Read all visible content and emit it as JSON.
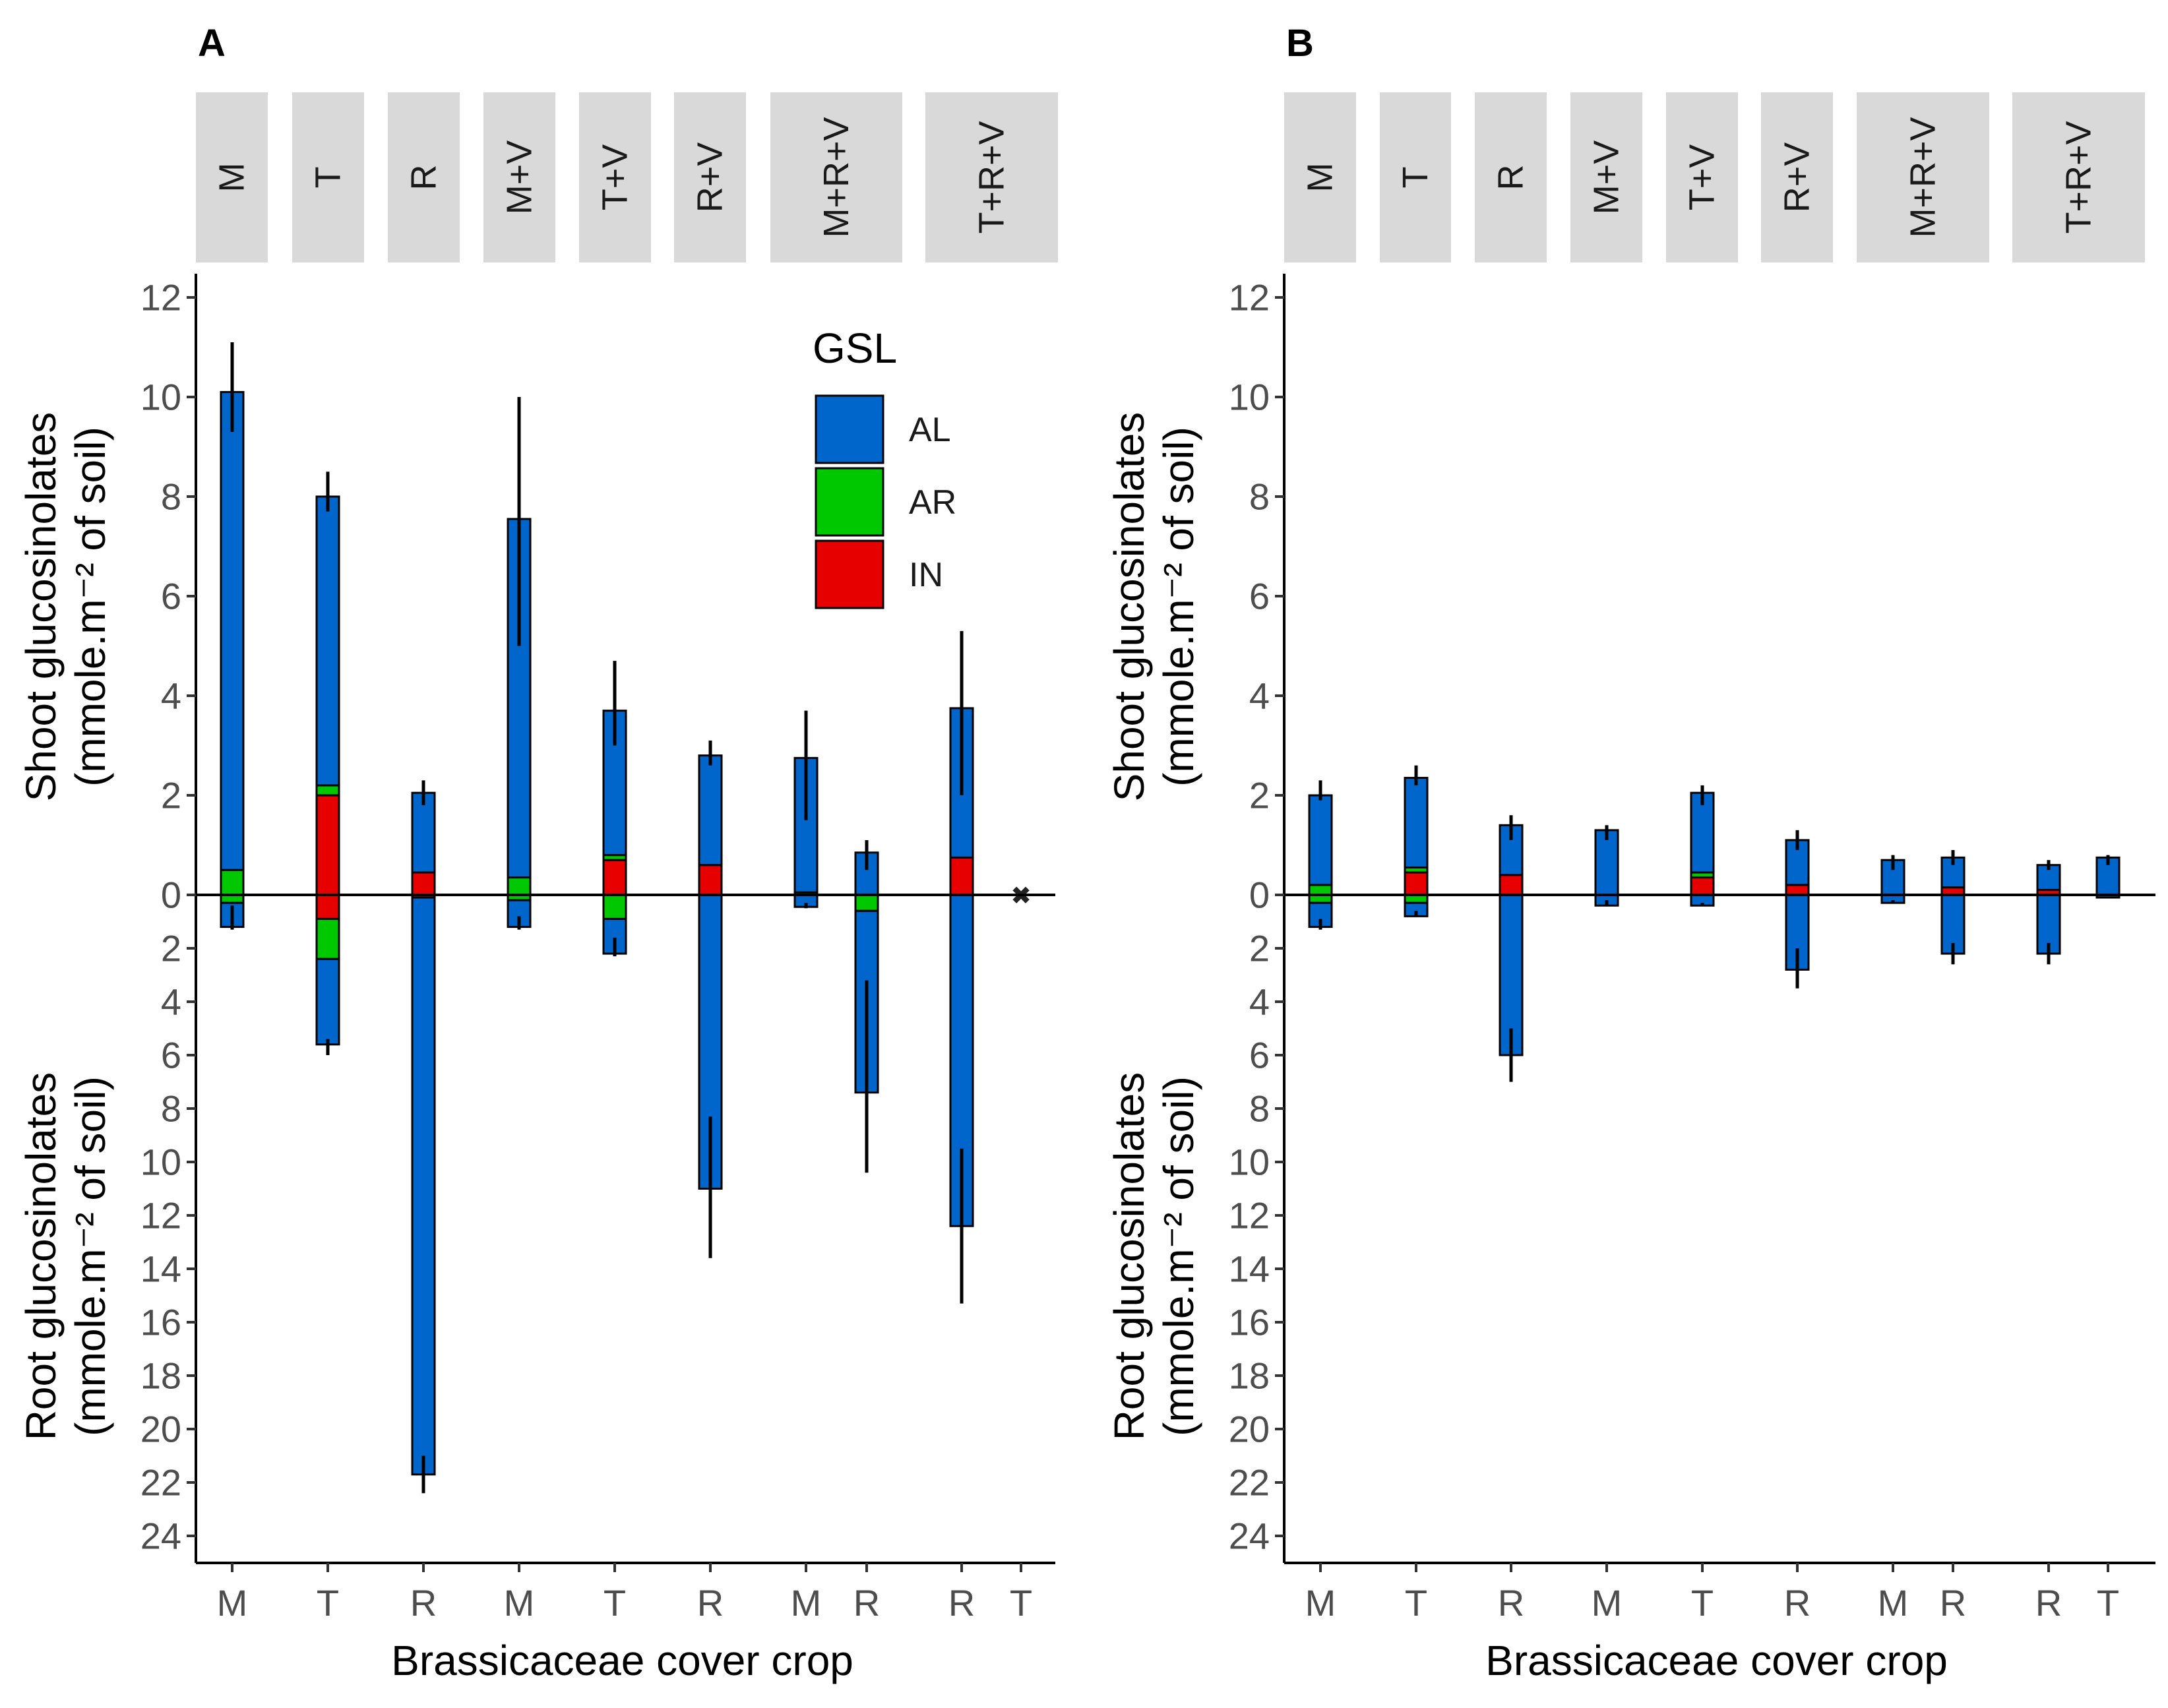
{
  "chart_data": [
    {
      "type": "bar",
      "panel": "A",
      "title": "",
      "xlabel": "Brassicaceae cover crop",
      "ylabel_top": [
        "Shoot glucosinolates",
        "(mmole.m⁻² of soil)"
      ],
      "ylabel_bottom": [
        "Root glucosinolates",
        "(mmole.m⁻² of soil)"
      ],
      "shoot_ticks": [
        "12",
        "10",
        "8",
        "6",
        "4",
        "2",
        "0"
      ],
      "root_ticks": [
        "2",
        "4",
        "6",
        "8",
        "10",
        "12",
        "14",
        "16",
        "18",
        "20",
        "22",
        "24"
      ],
      "ylim_shoot": [
        0,
        12
      ],
      "ylim_root": [
        0,
        24
      ],
      "groups": [
        "M",
        "T",
        "R",
        "M+V",
        "T+V",
        "R+V",
        "M+R+V",
        "T+R+V"
      ],
      "categories": [
        {
          "group": 0,
          "label": "M",
          "shoot": {
            "AL": 9.6,
            "AR": 0.5,
            "IN": 0.0
          },
          "root": {
            "AL": 0.9,
            "AR": 0.3,
            "IN": 0.0
          },
          "shoot_err": [
            9.3,
            11.1
          ],
          "root_err": [
            0.4,
            1.3
          ]
        },
        {
          "group": 1,
          "label": "T",
          "shoot": {
            "AL": 5.8,
            "AR": 0.2,
            "IN": 2.0
          },
          "root": {
            "AL": 3.2,
            "AR": 1.5,
            "IN": 0.9
          },
          "shoot_err": [
            7.7,
            8.5
          ],
          "root_err": [
            5.4,
            6.0
          ]
        },
        {
          "group": 2,
          "label": "R",
          "shoot": {
            "AL": 1.6,
            "AR": 0.0,
            "IN": 0.45
          },
          "root": {
            "AL": 21.6,
            "AR": 0.0,
            "IN": 0.1
          },
          "shoot_err": [
            1.8,
            2.3
          ],
          "root_err": [
            21.0,
            22.4
          ]
        },
        {
          "group": 3,
          "label": "M",
          "shoot": {
            "AL": 7.2,
            "AR": 0.35,
            "IN": 0.0
          },
          "root": {
            "AL": 1.0,
            "AR": 0.2,
            "IN": 0.0
          },
          "shoot_err": [
            5.0,
            10.0
          ],
          "root_err": [
            0.8,
            1.3
          ]
        },
        {
          "group": 4,
          "label": "T",
          "shoot": {
            "AL": 2.9,
            "AR": 0.1,
            "IN": 0.7
          },
          "root": {
            "AL": 1.3,
            "AR": 0.9,
            "IN": 0.0
          },
          "shoot_err": [
            3.0,
            4.7
          ],
          "root_err": [
            1.6,
            2.3
          ]
        },
        {
          "group": 5,
          "label": "R",
          "shoot": {
            "AL": 2.2,
            "AR": 0.0,
            "IN": 0.6
          },
          "root": {
            "AL": 11.0,
            "AR": 0.0,
            "IN": 0.0
          },
          "shoot_err": [
            2.6,
            3.1
          ],
          "root_err": [
            8.3,
            13.6
          ]
        },
        {
          "group": 6,
          "label": "M",
          "shoot": {
            "AL": 2.7,
            "AR": 0.05,
            "IN": 0.0
          },
          "root": {
            "AL": 0.45,
            "AR": 0.0,
            "IN": 0.0
          },
          "shoot_err": [
            1.5,
            3.7
          ],
          "root_err": [
            0.3,
            0.5
          ]
        },
        {
          "group": 6,
          "label": "R",
          "shoot": {
            "AL": 0.85,
            "AR": 0.0,
            "IN": 0.0
          },
          "root": {
            "AL": 6.8,
            "AR": 0.6,
            "IN": 0.0
          },
          "shoot_err": [
            0.5,
            1.1
          ],
          "root_err": [
            3.2,
            10.4
          ]
        },
        {
          "group": 7,
          "label": "R",
          "shoot": {
            "AL": 3.0,
            "AR": 0.0,
            "IN": 0.75
          },
          "root": {
            "AL": 12.4,
            "AR": 0.0,
            "IN": 0.0
          },
          "shoot_err": [
            2.0,
            5.3
          ],
          "root_err": [
            9.5,
            15.3
          ]
        },
        {
          "group": 7,
          "label": "T",
          "shoot": {
            "AL": 0.0,
            "AR": 0.0,
            "IN": 0.0
          },
          "root": {
            "AL": 0.0,
            "AR": 0.0,
            "IN": 0.0
          },
          "shoot_err": null,
          "root_err": null,
          "marker": "✖"
        }
      ]
    },
    {
      "type": "bar",
      "panel": "B",
      "title": "",
      "xlabel": "Brassicaceae cover crop",
      "ylabel_top": [
        "Shoot glucosinolates",
        "(mmole.m⁻² of soil)"
      ],
      "ylabel_bottom": [
        "Root glucosinolates",
        "(mmole.m⁻² of soil)"
      ],
      "shoot_ticks": [
        "12",
        "10",
        "8",
        "6",
        "4",
        "2",
        "0"
      ],
      "root_ticks": [
        "2",
        "4",
        "6",
        "8",
        "10",
        "12",
        "14",
        "16",
        "18",
        "20",
        "22",
        "24"
      ],
      "ylim_shoot": [
        0,
        12
      ],
      "ylim_root": [
        0,
        24
      ],
      "groups": [
        "M",
        "T",
        "R",
        "M+V",
        "T+V",
        "R+V",
        "M+R+V",
        "T+R+V"
      ],
      "categories": [
        {
          "group": 0,
          "label": "M",
          "shoot": {
            "AL": 1.8,
            "AR": 0.2,
            "IN": 0.0
          },
          "root": {
            "AL": 0.9,
            "AR": 0.3,
            "IN": 0.0
          },
          "shoot_err": [
            1.9,
            2.3
          ],
          "root_err": [
            0.9,
            1.3
          ]
        },
        {
          "group": 1,
          "label": "T",
          "shoot": {
            "AL": 1.8,
            "AR": 0.1,
            "IN": 0.45
          },
          "root": {
            "AL": 0.5,
            "AR": 0.3,
            "IN": 0.0
          },
          "shoot_err": [
            2.2,
            2.6
          ],
          "root_err": [
            0.6,
            0.8
          ]
        },
        {
          "group": 2,
          "label": "R",
          "shoot": {
            "AL": 1.0,
            "AR": 0.0,
            "IN": 0.4
          },
          "root": {
            "AL": 6.0,
            "AR": 0.0,
            "IN": 0.0
          },
          "shoot_err": [
            1.1,
            1.6
          ],
          "root_err": [
            5.0,
            7.0
          ]
        },
        {
          "group": 3,
          "label": "M",
          "shoot": {
            "AL": 1.3,
            "AR": 0.0,
            "IN": 0.0
          },
          "root": {
            "AL": 0.4,
            "AR": 0.0,
            "IN": 0.0
          },
          "shoot_err": [
            1.1,
            1.4
          ],
          "root_err": [
            0.2,
            0.4
          ]
        },
        {
          "group": 4,
          "label": "T",
          "shoot": {
            "AL": 1.6,
            "AR": 0.1,
            "IN": 0.35
          },
          "root": {
            "AL": 0.4,
            "AR": 0.0,
            "IN": 0.0
          },
          "shoot_err": [
            1.8,
            2.2
          ],
          "root_err": [
            0.3,
            0.4
          ]
        },
        {
          "group": 5,
          "label": "R",
          "shoot": {
            "AL": 0.9,
            "AR": 0.0,
            "IN": 0.2
          },
          "root": {
            "AL": 2.8,
            "AR": 0.0,
            "IN": 0.0
          },
          "shoot_err": [
            0.9,
            1.3
          ],
          "root_err": [
            2.0,
            3.5
          ]
        },
        {
          "group": 6,
          "label": "M",
          "shoot": {
            "AL": 0.7,
            "AR": 0.0,
            "IN": 0.0
          },
          "root": {
            "AL": 0.3,
            "AR": 0.0,
            "IN": 0.0
          },
          "shoot_err": [
            0.5,
            0.8
          ],
          "root_err": [
            0.2,
            0.3
          ]
        },
        {
          "group": 6,
          "label": "R",
          "shoot": {
            "AL": 0.6,
            "AR": 0.0,
            "IN": 0.15
          },
          "root": {
            "AL": 2.2,
            "AR": 0.0,
            "IN": 0.0
          },
          "shoot_err": [
            0.6,
            0.9
          ],
          "root_err": [
            1.8,
            2.6
          ]
        },
        {
          "group": 7,
          "label": "R",
          "shoot": {
            "AL": 0.5,
            "AR": 0.0,
            "IN": 0.1
          },
          "root": {
            "AL": 2.2,
            "AR": 0.0,
            "IN": 0.0
          },
          "shoot_err": [
            0.5,
            0.7
          ],
          "root_err": [
            1.8,
            2.6
          ]
        },
        {
          "group": 7,
          "label": "T",
          "shoot": {
            "AL": 0.75,
            "AR": 0.0,
            "IN": 0.0
          },
          "root": {
            "AL": 0.1,
            "AR": 0.0,
            "IN": 0.0
          },
          "shoot_err": [
            0.6,
            0.8
          ],
          "root_err": [
            0.1,
            0.1
          ]
        }
      ]
    }
  ],
  "legend": {
    "title": "GSL",
    "items": [
      {
        "key": "AL",
        "label": "AL",
        "color": "#0066CC"
      },
      {
        "key": "AR",
        "label": "AR",
        "color": "#00C800"
      },
      {
        "key": "IN",
        "label": "IN",
        "color": "#E60000"
      }
    ]
  },
  "colors": {
    "AL": "#0066CC",
    "AR": "#00C800",
    "IN": "#E60000",
    "strip": "#D9D9D9"
  }
}
